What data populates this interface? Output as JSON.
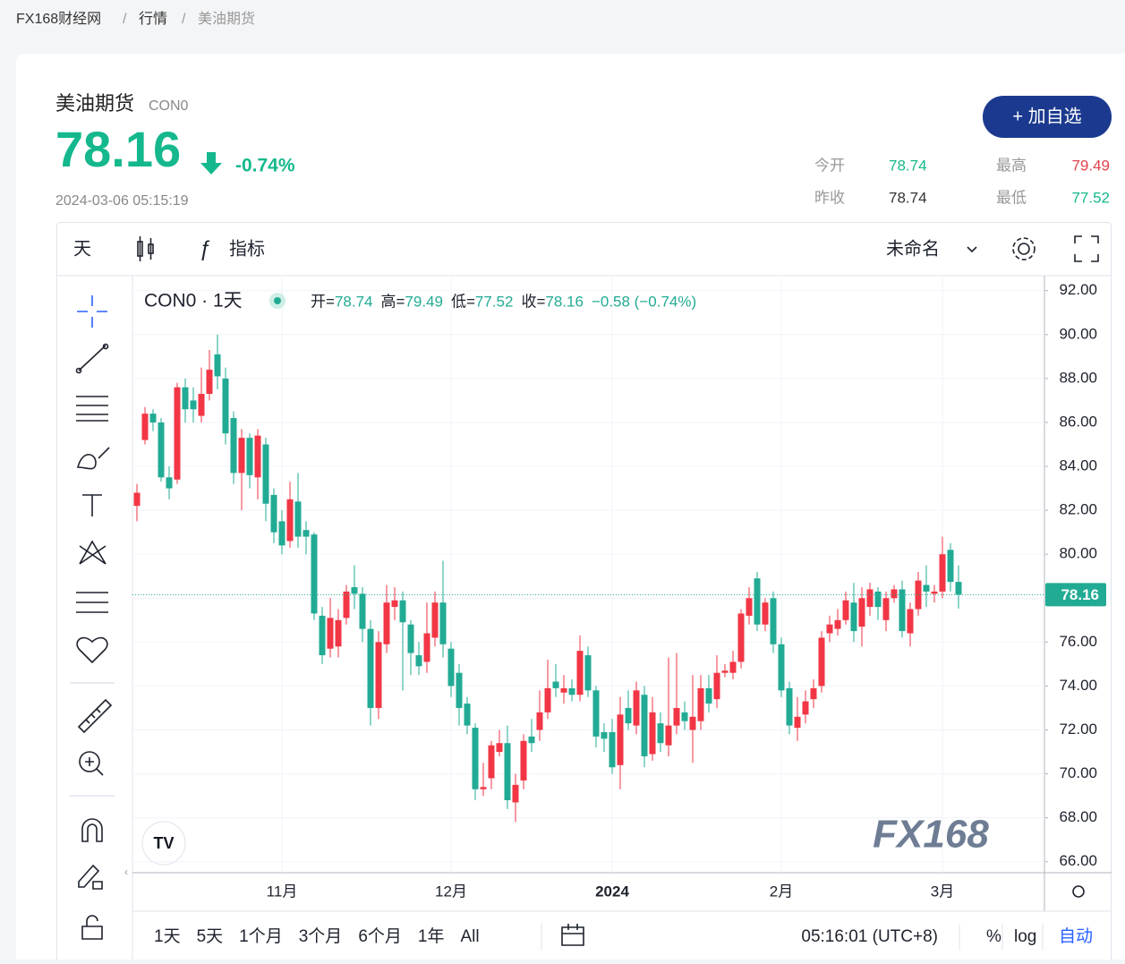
{
  "breadcrumb": [
    "FX168财经网",
    "行情",
    "美油期货"
  ],
  "header": {
    "name": "美油期货",
    "code": "CON0",
    "price": "78.16",
    "change": "-0.74%",
    "time": "2024-03-06 05:15:19",
    "button": "+ 加自选",
    "stats": [
      {
        "label": "今开",
        "value": "78.74"
      },
      {
        "label": "最高",
        "value": "79.49"
      },
      {
        "label": "昨收",
        "value": "78.74"
      },
      {
        "label": "最低",
        "value": "77.52"
      }
    ]
  },
  "toolbar": {
    "interval": "天",
    "indicators": "指标",
    "layout": "未命名"
  },
  "legend": {
    "symbol": "CON0 · 1天",
    "fields": [
      {
        "label": "开=",
        "value": "78.74"
      },
      {
        "label": "高=",
        "value": "79.49"
      },
      {
        "label": "低=",
        "value": "77.52"
      },
      {
        "label": "收=",
        "value": "78.16"
      }
    ],
    "change": "−0.58 (−0.74%)"
  },
  "chart_data": {
    "type": "candlestick",
    "up_color": "#f23645",
    "down_color": "#22ab94",
    "grid": true,
    "categories": [
      null,
      null,
      null,
      null,
      null,
      null,
      null,
      null,
      null,
      null,
      null,
      null,
      null,
      null,
      null,
      null,
      null,
      null,
      "11月",
      null,
      null,
      null,
      null,
      null,
      null,
      null,
      null,
      null,
      null,
      null,
      null,
      null,
      null,
      null,
      null,
      null,
      null,
      null,
      null,
      "12月",
      null,
      null,
      null,
      null,
      null,
      null,
      null,
      null,
      null,
      null,
      null,
      null,
      null,
      null,
      null,
      null,
      null,
      null,
      null,
      "2024",
      null,
      null,
      null,
      null,
      null,
      null,
      null,
      null,
      null,
      null,
      null,
      null,
      null,
      null,
      null,
      null,
      null,
      null,
      null,
      null,
      "2月",
      null,
      null,
      null,
      null,
      null,
      null,
      null,
      null,
      null,
      null,
      null,
      null,
      null,
      null,
      null,
      null,
      null,
      null,
      null,
      "3月",
      null,
      null
    ],
    "open": [
      82.2,
      85.2,
      86.4,
      86.0,
      83.5,
      83.4,
      87.6,
      87.0,
      86.3,
      87.3,
      89.1,
      88.0,
      86.2,
      83.7,
      85.3,
      83.5,
      85.0,
      82.7,
      81.5,
      80.6,
      82.4,
      81.1,
      80.9,
      77.2,
      75.7,
      75.8,
      77.1,
      78.5,
      78.2,
      76.6,
      73.0,
      75.9,
      77.6,
      77.9,
      76.8,
      75.4,
      75.1,
      76.2,
      77.8,
      75.7,
      74.6,
      73.2,
      72.1,
      69.3,
      69.8,
      71.0,
      71.4,
      68.7,
      69.7,
      71.7,
      72.0,
      72.8,
      74.2,
      73.7,
      73.9,
      73.6,
      75.4,
      73.8,
      71.9,
      71.9,
      70.4,
      73.0,
      72.2,
      73.6,
      70.9,
      72.3,
      71.3,
      72.2,
      72.8,
      72.0,
      72.4,
      73.9,
      73.4,
      74.6,
      74.6,
      75.1,
      77.2,
      78.9,
      76.8,
      78.0,
      75.9,
      73.9,
      72.1,
      72.7,
      73.4,
      74.0,
      76.4,
      76.6,
      77.0,
      77.8,
      76.7,
      77.6,
      78.3,
      77.0,
      78.0,
      78.4,
      76.4,
      77.5,
      78.6,
      78.2,
      78.3,
      80.2,
      78.74
    ],
    "high": [
      83.2,
      86.7,
      86.6,
      86.2,
      84.0,
      87.8,
      88.0,
      87.6,
      88.5,
      89.3,
      90.0,
      88.5,
      86.5,
      85.7,
      85.5,
      85.7,
      85.3,
      83.0,
      82.0,
      83.3,
      83.7,
      81.5,
      81.0,
      77.6,
      78.0,
      77.5,
      78.6,
      79.5,
      78.5,
      77.0,
      76.5,
      78.6,
      78.5,
      78.3,
      77.0,
      76.0,
      77.8,
      78.3,
      79.7,
      76.0,
      75.0,
      73.5,
      72.3,
      70.5,
      71.5,
      72.0,
      72.2,
      70.0,
      71.8,
      72.5,
      73.8,
      75.2,
      75.0,
      74.5,
      74.3,
      76.3,
      75.8,
      74.0,
      72.3,
      72.5,
      73.5,
      73.8,
      74.2,
      74.0,
      73.5,
      72.8,
      75.3,
      75.5,
      73.3,
      74.5,
      74.5,
      74.5,
      75.4,
      75.0,
      75.6,
      77.5,
      78.5,
      79.2,
      78.0,
      78.3,
      76.2,
      74.2,
      73.5,
      73.8,
      74.3,
      76.5,
      77.2,
      77.5,
      78.3,
      78.7,
      78.5,
      78.7,
      78.5,
      78.3,
      78.6,
      78.8,
      77.8,
      79.2,
      79.5,
      78.6,
      80.8,
      80.5,
      79.49
    ],
    "low": [
      81.5,
      85.0,
      85.6,
      83.3,
      82.5,
      83.2,
      86.0,
      86.0,
      86.0,
      87.0,
      87.5,
      85.0,
      83.2,
      82.0,
      83.0,
      82.5,
      81.5,
      80.5,
      80.0,
      80.3,
      80.3,
      80.0,
      77.0,
      75.0,
      75.3,
      75.3,
      76.8,
      77.5,
      76.0,
      72.2,
      72.5,
      75.5,
      77.0,
      73.8,
      74.5,
      74.5,
      74.6,
      75.8,
      75.3,
      73.5,
      72.2,
      71.8,
      68.8,
      69.0,
      69.3,
      70.8,
      68.4,
      67.8,
      69.3,
      71.0,
      71.5,
      72.5,
      73.5,
      73.2,
      73.3,
      73.3,
      73.5,
      71.2,
      71.0,
      70.0,
      69.3,
      72.0,
      71.8,
      70.3,
      70.6,
      71.0,
      70.8,
      71.8,
      72.0,
      70.5,
      72.0,
      72.8,
      73.0,
      74.4,
      74.3,
      74.8,
      76.8,
      76.5,
      76.5,
      75.5,
      73.5,
      71.8,
      71.5,
      72.3,
      73.0,
      73.7,
      76.0,
      76.3,
      76.8,
      76.0,
      75.8,
      77.2,
      77.0,
      76.5,
      77.8,
      76.2,
      75.8,
      77.2,
      77.6,
      77.8,
      78.0,
      78.3,
      77.52
    ],
    "close": [
      82.8,
      86.4,
      86.0,
      83.5,
      83.0,
      87.6,
      86.6,
      86.6,
      87.3,
      88.4,
      88.1,
      85.5,
      83.7,
      85.3,
      83.6,
      85.4,
      82.3,
      81.0,
      80.4,
      82.5,
      80.8,
      80.8,
      77.3,
      75.4,
      77.1,
      77.0,
      78.3,
      78.2,
      76.6,
      73.0,
      76.0,
      77.8,
      77.9,
      76.9,
      75.5,
      74.9,
      76.4,
      77.8,
      75.9,
      74.0,
      73.0,
      72.2,
      69.3,
      69.4,
      71.3,
      71.4,
      68.8,
      69.5,
      71.5,
      71.4,
      72.8,
      73.9,
      73.9,
      73.9,
      73.6,
      75.6,
      73.8,
      71.7,
      71.6,
      70.3,
      72.7,
      72.3,
      73.8,
      70.8,
      72.8,
      71.4,
      72.2,
      73.0,
      72.4,
      72.6,
      73.9,
      73.2,
      74.6,
      74.7,
      75.1,
      77.3,
      78.0,
      76.8,
      77.8,
      75.9,
      73.8,
      72.2,
      72.6,
      73.3,
      73.9,
      76.2,
      76.8,
      77.0,
      77.9,
      76.5,
      78.0,
      78.4,
      77.6,
      78.0,
      78.4,
      76.5,
      77.5,
      78.8,
      78.3,
      78.3,
      80.0,
      78.74,
      78.16
    ],
    "ylim": [
      65.5,
      92.6
    ],
    "yticks": [
      {
        "value": 66,
        "label": "66.00"
      },
      {
        "value": 68,
        "label": "68.00"
      },
      {
        "value": 70,
        "label": "70.00"
      },
      {
        "value": 72,
        "label": "72.00"
      },
      {
        "value": 74,
        "label": "74.00"
      },
      {
        "value": 76,
        "label": "76.00"
      },
      {
        "value": 78,
        "label": "78.00"
      },
      {
        "value": 80,
        "label": "80.00"
      },
      {
        "value": 82,
        "label": "82.00"
      },
      {
        "value": 84,
        "label": "84.00"
      },
      {
        "value": 86,
        "label": "86.00"
      },
      {
        "value": 88,
        "label": "88.00"
      },
      {
        "value": 90,
        "label": "90.00"
      },
      {
        "value": 92,
        "label": "92.00"
      }
    ],
    "last_price": 78.16,
    "watermark": "FX168"
  },
  "ranges": [
    "1天",
    "5天",
    "1个月",
    "3个月",
    "6个月",
    "1年",
    "All"
  ],
  "clock": "05:16:01 (UTC+8)",
  "scale_options": [
    "%",
    "log",
    "自动"
  ]
}
